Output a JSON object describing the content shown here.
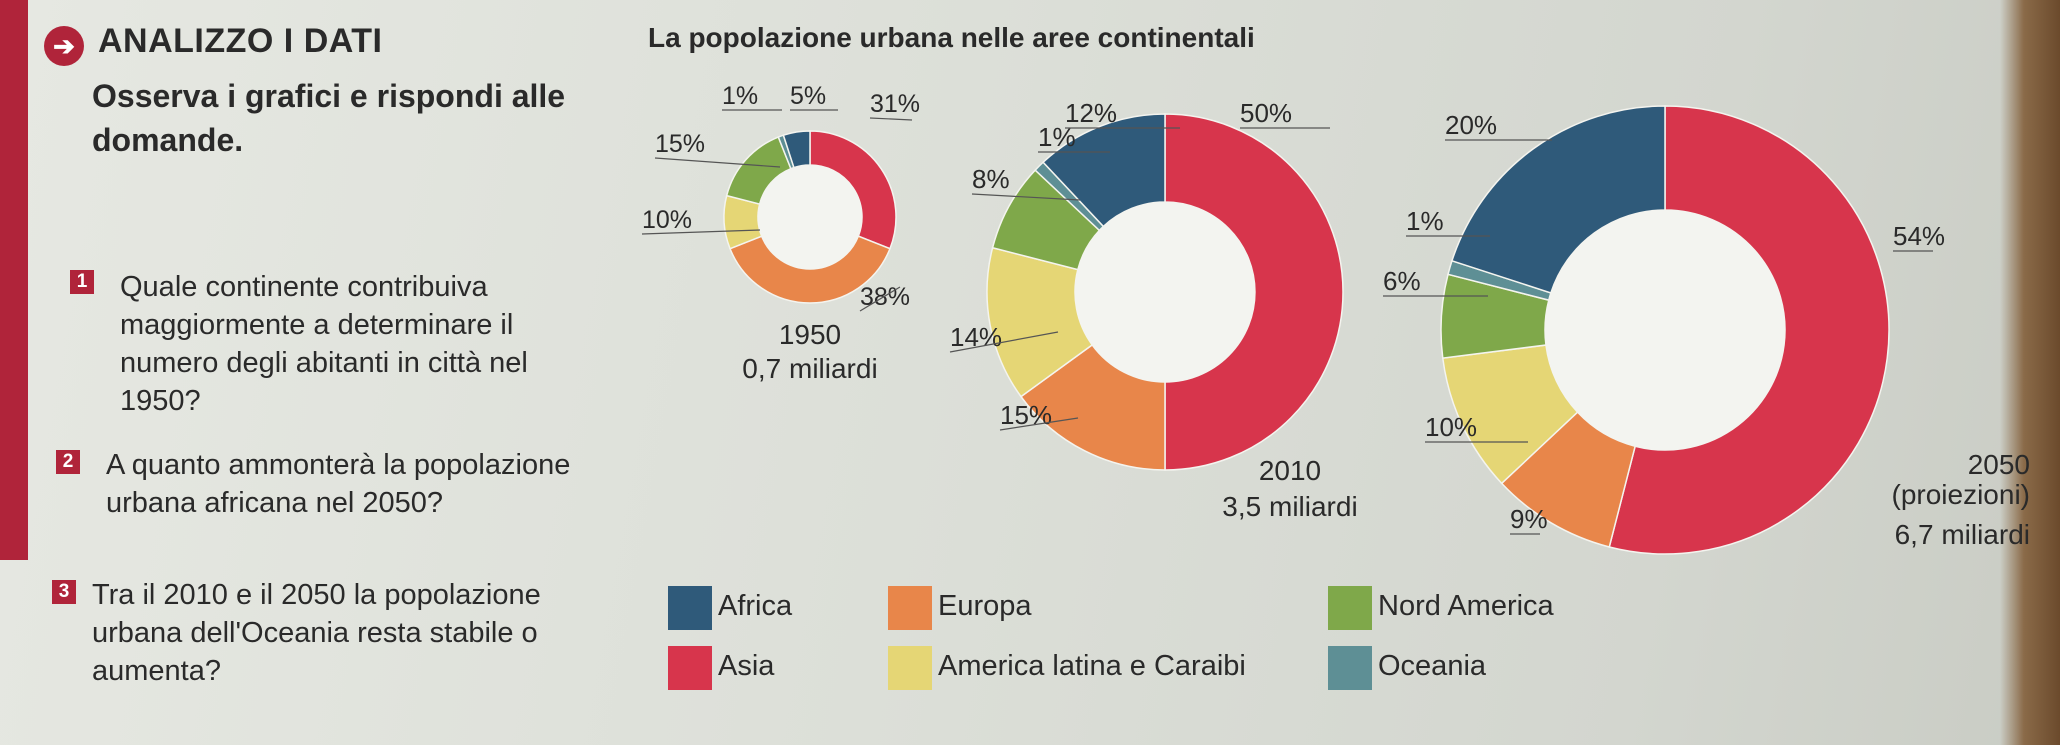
{
  "header": {
    "section_title": "ANALIZZO I DATI",
    "arrow_glyph": "➔",
    "chart_title": "La popolazione urbana nelle aree continentali"
  },
  "intro": "Osserva i grafici e rispondi alle domande.",
  "questions": [
    {
      "num": "1",
      "text": "Quale continente contribuiva maggiormente a determinare il numero degli abitanti in città nel 1950?"
    },
    {
      "num": "2",
      "text": "A quanto ammonterà la popolazione urbana africana nel 2050?"
    },
    {
      "num": "3",
      "text": "Tra il 2010 e il 2050 la popolazione urbana dell'Oceania resta stabile o aumenta?"
    }
  ],
  "colors": {
    "Africa": "#2f5a7a",
    "Europa": "#e8864a",
    "Nord America": "#7fa84a",
    "Asia": "#d7354c",
    "America latina e Caraibi": "#e5d675",
    "Oceania": "#5e8f95"
  },
  "legend": [
    {
      "label": "Africa",
      "key": "Africa"
    },
    {
      "label": "Europa",
      "key": "Europa"
    },
    {
      "label": "Nord America",
      "key": "Nord America"
    },
    {
      "label": "Asia",
      "key": "Asia"
    },
    {
      "label": "America latina e Caraibi",
      "key": "America latina e Caraibi"
    },
    {
      "label": "Oceania",
      "key": "Oceania"
    }
  ],
  "chart_data": [
    {
      "type": "pie",
      "year": "1950",
      "total": "0,7 miliardi",
      "slices": [
        {
          "name": "Asia",
          "value": 31,
          "label": "31%"
        },
        {
          "name": "Europa",
          "value": 38,
          "label": "38%"
        },
        {
          "name": "America latina e Caraibi",
          "value": 10,
          "label": "10%"
        },
        {
          "name": "Nord America",
          "value": 15,
          "label": "15%"
        },
        {
          "name": "Oceania",
          "value": 1,
          "label": "1%"
        },
        {
          "name": "Africa",
          "value": 5,
          "label": "5%"
        }
      ]
    },
    {
      "type": "pie",
      "year": "2010",
      "total": "3,5 miliardi",
      "slices": [
        {
          "name": "Asia",
          "value": 50,
          "label": "50%"
        },
        {
          "name": "Europa",
          "value": 15,
          "label": "15%"
        },
        {
          "name": "America latina e Caraibi",
          "value": 14,
          "label": "14%"
        },
        {
          "name": "Nord America",
          "value": 8,
          "label": "8%"
        },
        {
          "name": "Oceania",
          "value": 1,
          "label": "1%"
        },
        {
          "name": "Africa",
          "value": 12,
          "label": "12%"
        }
      ]
    },
    {
      "type": "pie",
      "year": "2050",
      "year_note": "(proiezioni)",
      "total": "6,7 miliardi",
      "slices": [
        {
          "name": "Asia",
          "value": 54,
          "label": "54%"
        },
        {
          "name": "Europa",
          "value": 9,
          "label": "9%"
        },
        {
          "name": "America latina e Caraibi",
          "value": 10,
          "label": "10%"
        },
        {
          "name": "Nord America",
          "value": 6,
          "label": "6%"
        },
        {
          "name": "Oceania",
          "value": 1,
          "label": "1%"
        },
        {
          "name": "Africa",
          "value": 20,
          "label": "20%"
        }
      ]
    }
  ]
}
